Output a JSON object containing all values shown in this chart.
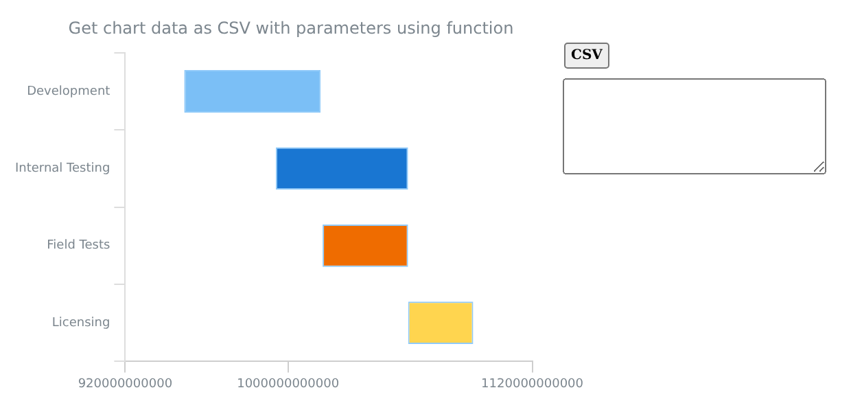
{
  "chart_data": {
    "type": "bar",
    "orientation": "horizontal",
    "title": "Get chart data as CSV with parameters using function",
    "categories": [
      "Development",
      "Internal Testing",
      "Field Tests",
      "Licensing"
    ],
    "base": [
      949000000000,
      994000000000,
      1017000000000,
      1059000000000
    ],
    "values": [
      67000000000,
      65000000000,
      42000000000,
      32000000000
    ],
    "colors": [
      "#7bbff6",
      "#1976d2",
      "#ef6c00",
      "#ffd54f"
    ],
    "xlim": [
      920000000000,
      1120000000000
    ],
    "xticks": [
      920000000000,
      1000000000000,
      1120000000000
    ],
    "grid": false,
    "legend": false,
    "annotations": [
      "CSV"
    ]
  }
}
